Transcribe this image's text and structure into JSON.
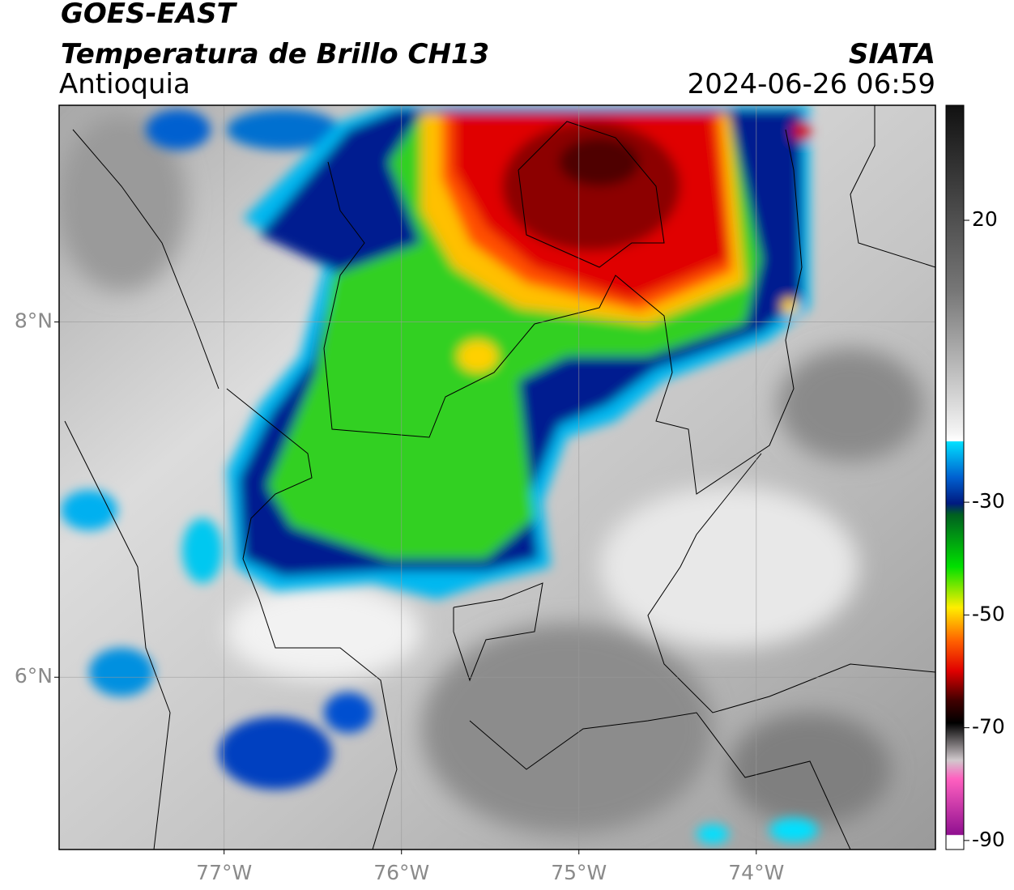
{
  "header": {
    "title": "GOES-EAST",
    "subtitle": "Temperatura de Brillo CH13",
    "region": "Antioquia",
    "source": "SIATA",
    "timestamp": "2024-06-26 06:59"
  },
  "map": {
    "xlim": [
      -77.93,
      -72.99
    ],
    "ylim": [
      5.03,
      9.22
    ],
    "xticks": [
      {
        "value": -77,
        "label": "77°W"
      },
      {
        "value": -76,
        "label": "76°W"
      },
      {
        "value": -75,
        "label": "75°W"
      },
      {
        "value": -74,
        "label": "74°W"
      }
    ],
    "yticks": [
      {
        "value": 8,
        "label": "8°N"
      },
      {
        "value": 6,
        "label": "6°N"
      }
    ],
    "grid": true
  },
  "colorbar": {
    "clim": [
      -91.6,
      40.4
    ],
    "ticks": [
      20,
      -30,
      -50,
      -70,
      -90
    ]
  }
}
